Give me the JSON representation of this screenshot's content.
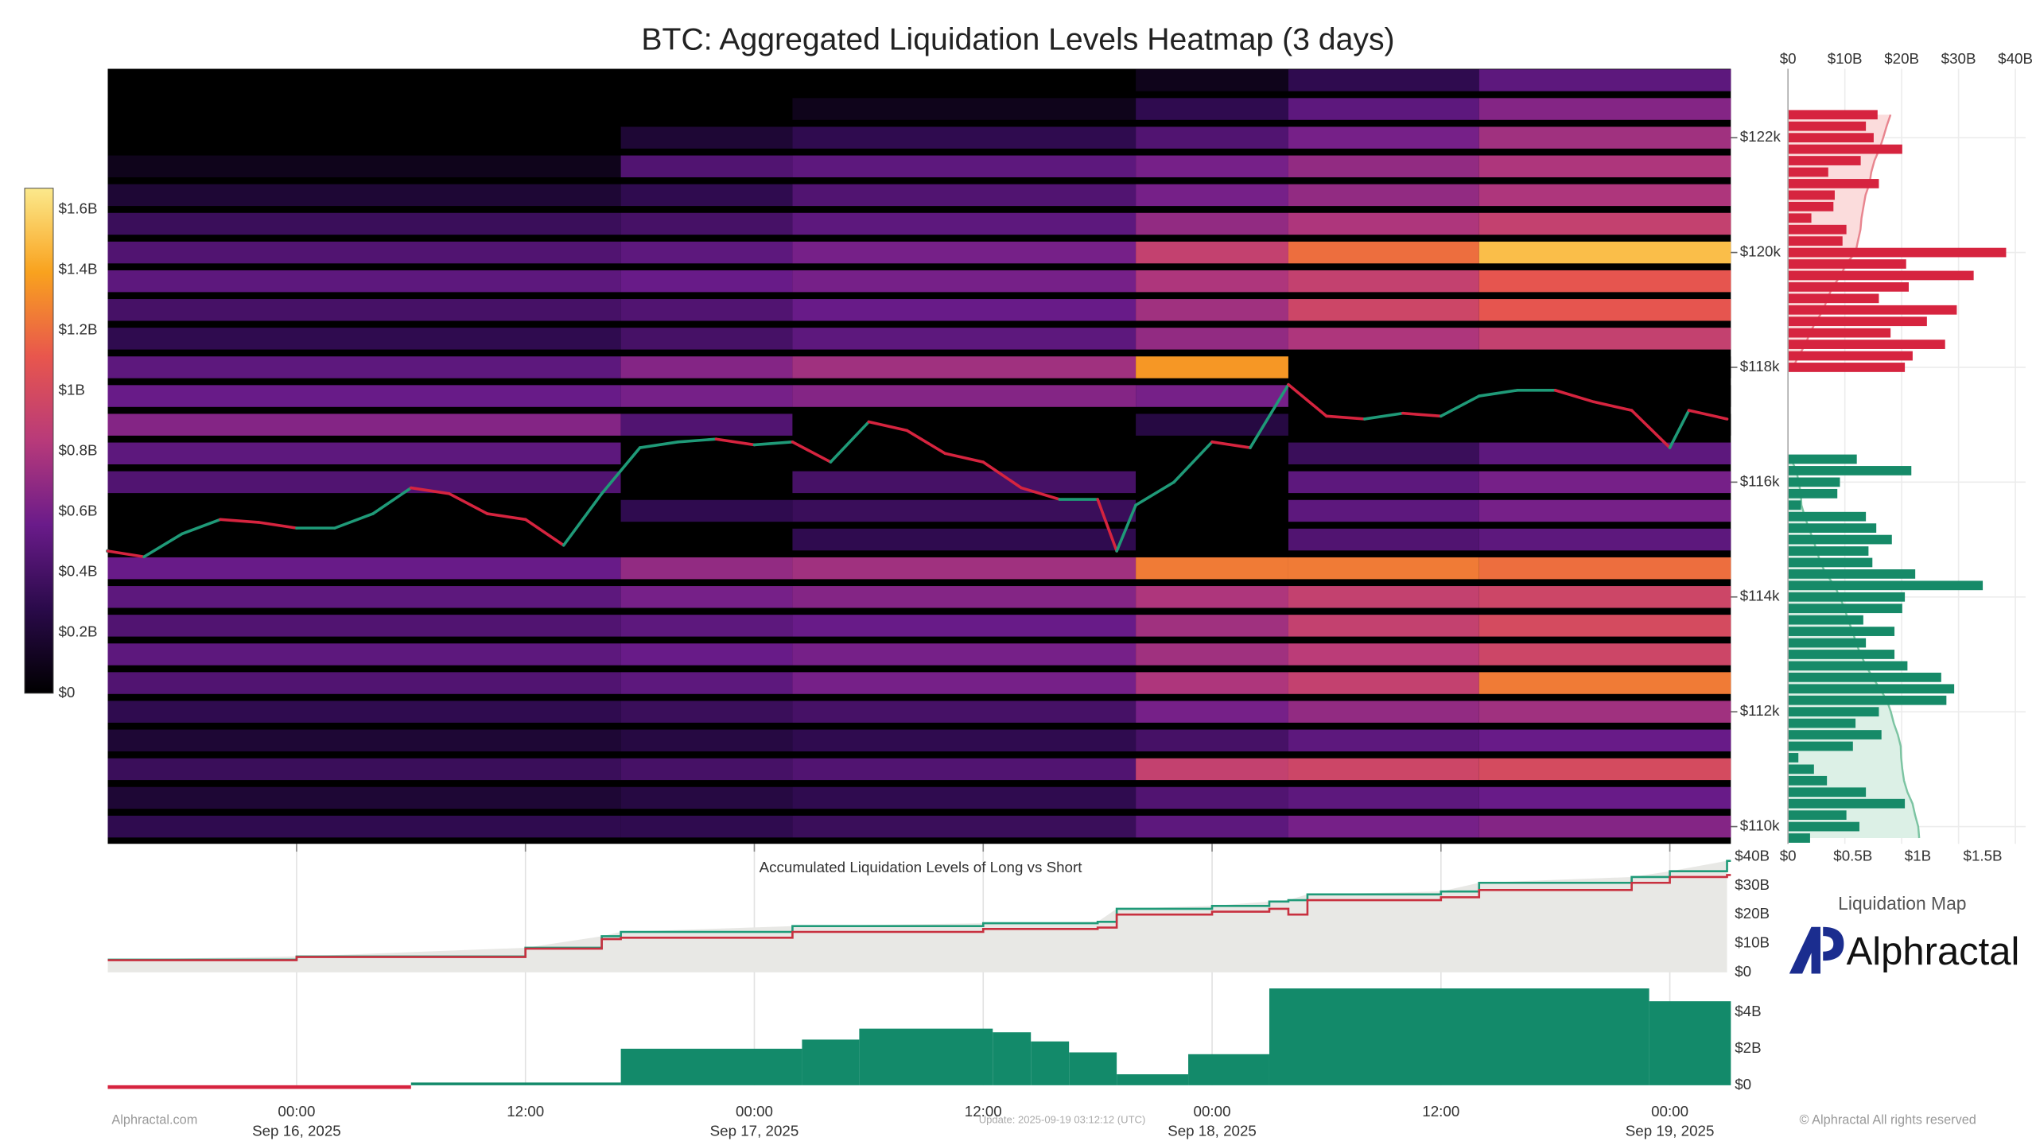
{
  "title": "BTC: Aggregated Liquidation Levels Heatmap (3 days)",
  "footer": {
    "left": "Alphractal.com",
    "update": "Update: 2025-09-19 03:12:12 (UTC)",
    "right": "© Alphractal All rights reserved"
  },
  "brand": {
    "caption": "Liquidation Map",
    "name": "Alphractal"
  },
  "chart_data": [
    {
      "type": "heatmap",
      "xlim": [
        "2025-09-15T14:06",
        "2025-09-19T03:12"
      ],
      "xticks": [
        {
          "value": "2025-09-16T00:00",
          "label": [
            "00:00",
            "Sep 16, 2025"
          ]
        },
        {
          "value": "2025-09-16T12:00",
          "label": [
            "12:00"
          ]
        },
        {
          "value": "2025-09-17T00:00",
          "label": [
            "00:00",
            "Sep 17, 2025"
          ]
        },
        {
          "value": "2025-09-17T12:00",
          "label": [
            "12:00"
          ]
        },
        {
          "value": "2025-09-18T00:00",
          "label": [
            "00:00",
            "Sep 18, 2025"
          ]
        },
        {
          "value": "2025-09-18T12:00",
          "label": [
            "12:00"
          ]
        },
        {
          "value": "2025-09-19T00:00",
          "label": [
            "00:00",
            "Sep 19, 2025"
          ]
        }
      ],
      "ylim": [
        109700,
        123200
      ],
      "yticks": [
        {
          "value": 110000,
          "label": "$110k"
        },
        {
          "value": 112000,
          "label": "$112k"
        },
        {
          "value": 114000,
          "label": "$114k"
        },
        {
          "value": 116000,
          "label": "$116k"
        },
        {
          "value": 118000,
          "label": "$118k"
        },
        {
          "value": 120000,
          "label": "$120k"
        },
        {
          "value": 122000,
          "label": "$122k"
        }
      ],
      "colorscale": [
        "#000000",
        "#2a0a4a",
        "#6a1b8a",
        "#b83a7a",
        "#e8564d",
        "#f9a21e",
        "#fbe98c"
      ],
      "clim": [
        0,
        1.67
      ],
      "colorbar_ticks": [
        {
          "value": 0,
          "label": "$0"
        },
        {
          "value": 0.2,
          "label": "$0.2B"
        },
        {
          "value": 0.4,
          "label": "$0.4B"
        },
        {
          "value": 0.6,
          "label": "$0.6B"
        },
        {
          "value": 0.8,
          "label": "$0.8B"
        },
        {
          "value": 1,
          "label": "$1B"
        },
        {
          "value": 1.2,
          "label": "$1.2B"
        },
        {
          "value": 1.4,
          "label": "$1.4B"
        },
        {
          "value": 1.6,
          "label": "$1.6B"
        }
      ],
      "x": [
        "2025-09-15T14:06",
        "2025-09-16T17:00",
        "2025-09-17T02:00",
        "2025-09-17T20:00",
        "2025-09-18T04:00",
        "2025-09-18T14:00"
      ],
      "y": [
        110000,
        110500,
        111000,
        111500,
        112000,
        112500,
        113000,
        113500,
        114000,
        114500,
        115000,
        115500,
        116000,
        116500,
        117000,
        117500,
        118000,
        118500,
        119000,
        119500,
        120000,
        120500,
        121000,
        121500,
        122000,
        122500,
        123000
      ],
      "z": [
        [
          0.3,
          0.3,
          0.35,
          0.5,
          0.6,
          0.65
        ],
        [
          0.2,
          0.25,
          0.3,
          0.45,
          0.5,
          0.55
        ],
        [
          0.35,
          0.4,
          0.45,
          0.9,
          0.95,
          1.0
        ],
        [
          0.2,
          0.25,
          0.3,
          0.4,
          0.5,
          0.55
        ],
        [
          0.3,
          0.35,
          0.4,
          0.6,
          0.7,
          0.75
        ],
        [
          0.45,
          0.5,
          0.6,
          0.8,
          0.9,
          1.25
        ],
        [
          0.5,
          0.55,
          0.6,
          0.75,
          0.85,
          0.95
        ],
        [
          0.45,
          0.5,
          0.55,
          0.75,
          0.9,
          1.0
        ],
        [
          0.5,
          0.6,
          0.65,
          0.8,
          0.9,
          0.95
        ],
        [
          0.55,
          0.7,
          0.75,
          1.25,
          1.25,
          1.2
        ],
        [
          0,
          0,
          0.3,
          0,
          0.45,
          0.5
        ],
        [
          0,
          0.3,
          0.35,
          0,
          0.5,
          0.6
        ],
        [
          0.45,
          0,
          0.4,
          0,
          0.5,
          0.6
        ],
        [
          0.5,
          0,
          0,
          0,
          0.35,
          0.5
        ],
        [
          0.65,
          0.45,
          0,
          0.25,
          0,
          0
        ],
        [
          0.55,
          0.6,
          0.65,
          0.6,
          0,
          0
        ],
        [
          0.5,
          0.65,
          0.75,
          1.35,
          0,
          0
        ],
        [
          0.3,
          0.4,
          0.5,
          0.7,
          0.8,
          0.9
        ],
        [
          0.4,
          0.45,
          0.55,
          0.75,
          0.95,
          1.1
        ],
        [
          0.5,
          0.55,
          0.6,
          0.8,
          0.9,
          1.1
        ],
        [
          0.45,
          0.5,
          0.6,
          0.9,
          1.2,
          1.5
        ],
        [
          0.35,
          0.4,
          0.5,
          0.7,
          0.8,
          0.9
        ],
        [
          0.2,
          0.3,
          0.45,
          0.6,
          0.7,
          0.8
        ],
        [
          0.1,
          0.45,
          0.5,
          0.6,
          0.7,
          0.8
        ],
        [
          0,
          0.2,
          0.3,
          0.45,
          0.6,
          0.75
        ],
        [
          0,
          0,
          0.1,
          0.3,
          0.5,
          0.65
        ],
        [
          0,
          0,
          0,
          0.1,
          0.3,
          0.5
        ]
      ],
      "price": {
        "up_color": "#1f9a78",
        "down_color": "#d6243f",
        "x": [
          "2025-09-15T14:06",
          "2025-09-15T16:00",
          "2025-09-15T18:00",
          "2025-09-15T20:00",
          "2025-09-15T22:00",
          "2025-09-16T00:00",
          "2025-09-16T02:00",
          "2025-09-16T04:00",
          "2025-09-16T06:00",
          "2025-09-16T08:00",
          "2025-09-16T10:00",
          "2025-09-16T12:00",
          "2025-09-16T14:00",
          "2025-09-16T16:00",
          "2025-09-16T18:00",
          "2025-09-16T20:00",
          "2025-09-16T22:00",
          "2025-09-17T00:00",
          "2025-09-17T02:00",
          "2025-09-17T04:00",
          "2025-09-17T06:00",
          "2025-09-17T08:00",
          "2025-09-17T10:00",
          "2025-09-17T12:00",
          "2025-09-17T14:00",
          "2025-09-17T16:00",
          "2025-09-17T18:00",
          "2025-09-17T19:00",
          "2025-09-17T20:00",
          "2025-09-17T22:00",
          "2025-09-18T00:00",
          "2025-09-18T02:00",
          "2025-09-18T04:00",
          "2025-09-18T06:00",
          "2025-09-18T08:00",
          "2025-09-18T10:00",
          "2025-09-18T12:00",
          "2025-09-18T14:00",
          "2025-09-18T16:00",
          "2025-09-18T18:00",
          "2025-09-18T20:00",
          "2025-09-18T22:00",
          "2025-09-19T00:00",
          "2025-09-19T01:00",
          "2025-09-19T03:00"
        ],
        "values": [
          114800,
          114700,
          115100,
          115350,
          115300,
          115200,
          115200,
          115450,
          115900,
          115800,
          115450,
          115350,
          114900,
          115800,
          116600,
          116700,
          116750,
          116650,
          116700,
          116350,
          117050,
          116900,
          116500,
          116350,
          115900,
          115700,
          115700,
          114800,
          115600,
          116000,
          116700,
          116600,
          117700,
          117150,
          117100,
          117200,
          117150,
          117500,
          117600,
          117600,
          117400,
          117250,
          116600,
          117250,
          117100
        ]
      }
    },
    {
      "type": "bar",
      "orientation": "horizontal",
      "xlim": [
        0,
        1.83
      ],
      "xticks": [
        {
          "value": 0,
          "label": "$0"
        },
        {
          "value": 0.5,
          "label": "$0.5B"
        },
        {
          "value": 1,
          "label": "$1B"
        },
        {
          "value": 1.5,
          "label": "$1.5B"
        }
      ],
      "x2lim": [
        0,
        41.8
      ],
      "x2ticks": [
        {
          "value": 0,
          "label": "$0"
        },
        {
          "value": 10,
          "label": "$10B"
        },
        {
          "value": 20,
          "label": "$20B"
        },
        {
          "value": 30,
          "label": "$30B"
        },
        {
          "value": 40,
          "label": "$40B"
        }
      ],
      "series": [
        {
          "color": "#d6243f",
          "area_color": "#fbdcdc",
          "line_color": "#e8858f",
          "y": [
            118000,
            118200,
            118400,
            118600,
            118800,
            119000,
            119200,
            119400,
            119600,
            119800,
            120000,
            120200,
            120400,
            120600,
            120800,
            121000,
            121200,
            121400,
            121600,
            121800,
            122000,
            122200,
            122400
          ],
          "values": [
            0.9,
            0.96,
            1.21,
            0.79,
            1.07,
            1.3,
            0.7,
            0.93,
            1.43,
            0.91,
            1.68,
            0.42,
            0.45,
            0.18,
            0.35,
            0.36,
            0.7,
            0.31,
            0.56,
            0.88,
            0.66,
            0.6,
            0.69
          ]
        },
        {
          "color": "#168a68",
          "area_color": "#dcf0e6",
          "line_color": "#7cc4a2",
          "y": [
            116400,
            116200,
            116000,
            115800,
            115600,
            115400,
            115200,
            115000,
            114800,
            114600,
            114400,
            114200,
            114000,
            113800,
            113600,
            113400,
            113200,
            113000,
            112800,
            112600,
            112400,
            112200,
            112000,
            111800,
            111600,
            111400,
            111200,
            111000,
            110800,
            110600,
            110400,
            110200,
            110000,
            109800
          ],
          "values": [
            0.53,
            0.95,
            0.4,
            0.38,
            0.1,
            0.6,
            0.68,
            0.8,
            0.62,
            0.65,
            0.98,
            1.5,
            0.9,
            0.88,
            0.58,
            0.82,
            0.6,
            0.82,
            0.92,
            1.18,
            1.28,
            1.22,
            0.7,
            0.52,
            0.72,
            0.5,
            0.08,
            0.2,
            0.3,
            0.6,
            0.9,
            0.45,
            0.55,
            0.17
          ]
        }
      ]
    },
    {
      "type": "line",
      "title": "Accumulated Liquidation Levels of Long vs Short",
      "area_color": "#e8e8e5",
      "ylim": [
        0,
        40
      ],
      "yticks": [
        {
          "value": 0,
          "label": "$0"
        },
        {
          "value": 10,
          "label": "$10B"
        },
        {
          "value": 20,
          "label": "$20B"
        },
        {
          "value": 30,
          "label": "$30B"
        },
        {
          "value": 40,
          "label": "$40B"
        }
      ],
      "x": [
        "2025-09-15T14:06",
        "2025-09-16T00:00",
        "2025-09-16T12:00",
        "2025-09-16T16:00",
        "2025-09-16T17:00",
        "2025-09-17T02:00",
        "2025-09-17T12:00",
        "2025-09-17T18:00",
        "2025-09-17T19:00",
        "2025-09-18T00:00",
        "2025-09-18T03:00",
        "2025-09-18T04:00",
        "2025-09-18T05:00",
        "2025-09-18T12:00",
        "2025-09-18T14:00",
        "2025-09-18T22:00",
        "2025-09-19T00:00",
        "2025-09-19T03:00"
      ],
      "series": [
        {
          "color": "#1f9a78",
          "values": [
            4.4,
            5.5,
            8.5,
            12.5,
            14,
            16,
            17,
            17.5,
            22,
            23,
            24.5,
            25,
            27,
            28,
            31,
            33,
            35,
            38.6
          ]
        },
        {
          "color": "#c8303f",
          "values": [
            4.2,
            5.3,
            8.2,
            11.5,
            12,
            14,
            15,
            15.5,
            20,
            21,
            22,
            20,
            25,
            26,
            28.5,
            31,
            33,
            33.7
          ]
        }
      ]
    },
    {
      "type": "step",
      "color": "#138a6a",
      "negative_color": "#d6243f",
      "ylim": [
        -0.4,
        5.4
      ],
      "yticks": [
        {
          "value": 0,
          "label": "$0"
        },
        {
          "value": 2,
          "label": "$2B"
        },
        {
          "value": 4,
          "label": "$4B"
        }
      ],
      "x": [
        "2025-09-15T14:06",
        "2025-09-16T06:00",
        "2025-09-16T17:00",
        "2025-09-17T02:30",
        "2025-09-17T05:30",
        "2025-09-17T12:30",
        "2025-09-17T14:30",
        "2025-09-17T16:30",
        "2025-09-17T19:00",
        "2025-09-17T22:45",
        "2025-09-18T03:00",
        "2025-09-18T22:55"
      ],
      "values": [
        -0.2,
        0.15,
        2.0,
        2.5,
        3.1,
        2.9,
        2.4,
        1.8,
        0.6,
        1.7,
        5.3,
        4.6
      ]
    }
  ]
}
